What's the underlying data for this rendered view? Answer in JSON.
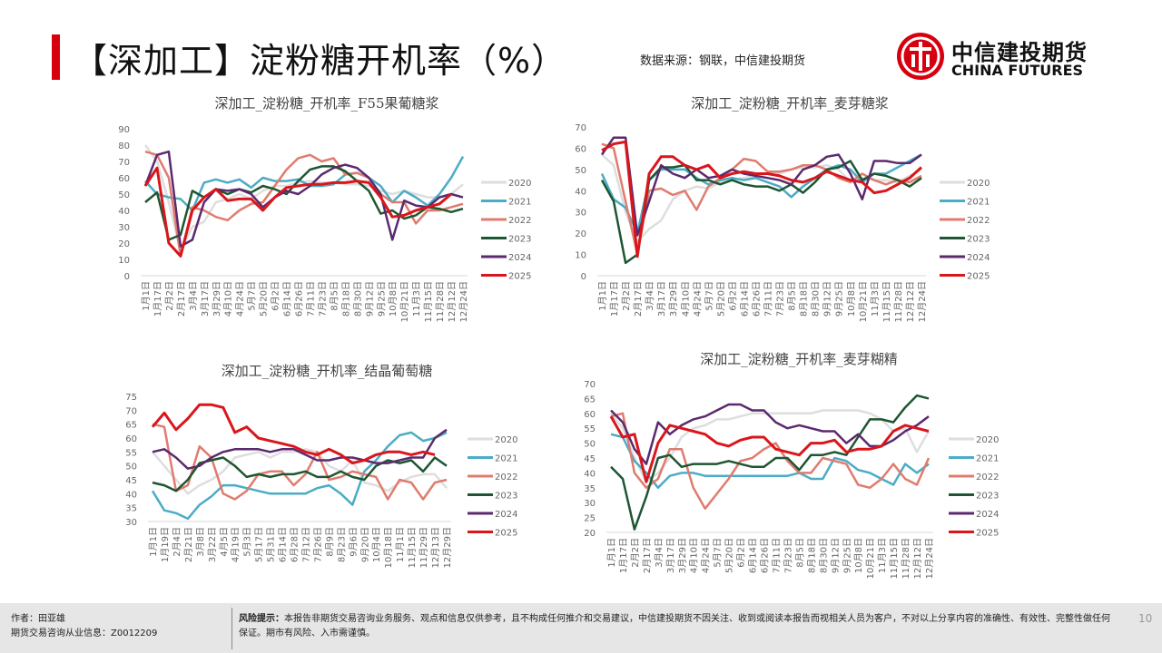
{
  "header": {
    "title": "【深加工】淀粉糖开机率（%）",
    "source": "数据来源：钢联，中信建投期货"
  },
  "logo": {
    "cn": "中信建投期货",
    "en": "CHINA FUTURES"
  },
  "footer": {
    "author": "作者：田亚雄",
    "license": "期货交易咨询从业信息：Z0012209",
    "risk_label": "风险提示：",
    "risk_text": "本报告非期货交易咨询业务服务、观点和信息仅供参考，且不构成任何推介和交易建议，中信建投期货不因关注、收到或阅读本报告而视相关人员为客户，不对以上分享内容的准确性、有效性、完整性做任何保证。期市有风险、入市需谨慎。",
    "page": "10"
  },
  "colors": {
    "2020": "#dedede",
    "2021": "#4bacc6",
    "2022": "#e07b6f",
    "2023": "#1e5631",
    "2024": "#5b2a6e",
    "2025": "#d9161b"
  },
  "chart_data": [
    {
      "type": "line",
      "title": "深加工_淀粉糖_开机率_F55果葡糖浆",
      "ylim": [
        0,
        90
      ],
      "yticks": [
        0,
        10,
        20,
        30,
        40,
        50,
        60,
        70,
        80,
        90
      ],
      "categories": [
        "1月1日",
        "1月17日",
        "2月2日",
        "2月17日",
        "3月4日",
        "3月17日",
        "3月29日",
        "4月10日",
        "4月24日",
        "5月7日",
        "5月20日",
        "6月2日",
        "6月14日",
        "6月26日",
        "7月11日",
        "7月23日",
        "8月5日",
        "8月18日",
        "8月30日",
        "9月12日",
        "9月25日",
        "10月8日",
        "10月21日",
        "11月3日",
        "11月15日",
        "11月28日",
        "12月12日",
        "12月24日"
      ],
      "series": [
        {
          "name": "2020",
          "values": [
            80,
            70,
            45,
            15,
            30,
            33,
            45,
            47,
            50,
            47,
            52,
            55,
            55,
            57,
            58,
            57,
            57,
            56,
            56,
            55,
            52,
            50,
            52,
            50,
            48,
            48,
            50,
            56
          ]
        },
        {
          "name": "2021",
          "values": [
            58,
            50,
            48,
            47,
            40,
            57,
            59,
            57,
            59,
            54,
            60,
            58,
            58,
            59,
            55,
            55,
            56,
            62,
            63,
            60,
            55,
            45,
            52,
            48,
            43,
            50,
            60,
            73
          ]
        },
        {
          "name": "2022",
          "values": [
            76,
            74,
            60,
            12,
            42,
            40,
            36,
            34,
            40,
            44,
            45,
            55,
            65,
            72,
            74,
            70,
            72,
            62,
            63,
            60,
            50,
            45,
            45,
            32,
            40,
            40,
            42,
            44
          ]
        },
        {
          "name": "2023",
          "values": [
            45,
            51,
            22,
            25,
            52,
            48,
            53,
            50,
            53,
            51,
            55,
            53,
            50,
            58,
            65,
            67,
            67,
            64,
            58,
            52,
            38,
            40,
            35,
            37,
            42,
            41,
            39,
            41
          ]
        },
        {
          "name": "2024",
          "values": [
            55,
            74,
            76,
            18,
            22,
            45,
            53,
            52,
            53,
            50,
            42,
            48,
            52,
            50,
            55,
            62,
            66,
            68,
            66,
            60,
            50,
            22,
            46,
            43,
            42,
            48,
            50,
            48
          ]
        },
        {
          "name": "2025",
          "values": [
            55,
            66,
            20,
            12,
            40,
            48,
            53,
            46,
            47,
            47,
            40,
            48,
            54,
            55,
            56,
            56,
            57,
            57,
            58,
            57,
            48,
            36,
            37,
            40,
            42,
            44,
            50,
            null
          ]
        }
      ]
    },
    {
      "type": "line",
      "title": "深加工_淀粉糖_开机率_麦芽糖浆",
      "ylim": [
        0,
        70
      ],
      "yticks": [
        0,
        10,
        20,
        30,
        40,
        50,
        60,
        70
      ],
      "categories": [
        "1月1日",
        "1月17日",
        "2月2日",
        "2月17日",
        "3月4日",
        "3月17日",
        "3月29日",
        "4月10日",
        "4月24日",
        "5月7日",
        "5月20日",
        "6月2日",
        "6月14日",
        "6月26日",
        "7月11日",
        "7月23日",
        "8月5日",
        "8月18日",
        "8月30日",
        "9月12日",
        "9月25日",
        "10月8日",
        "10月21日",
        "11月3日",
        "11月15日",
        "11月28日",
        "12月12日",
        "12月24日"
      ],
      "series": [
        {
          "name": "2020",
          "values": [
            57,
            52,
            30,
            16,
            22,
            26,
            36,
            40,
            42,
            41,
            44,
            45,
            46,
            47,
            48,
            48,
            50,
            51,
            51,
            52,
            50,
            44,
            46,
            45,
            45,
            44,
            47,
            50
          ]
        },
        {
          "name": "2021",
          "values": [
            48,
            36,
            32,
            20,
            45,
            50,
            50,
            50,
            46,
            43,
            45,
            46,
            45,
            46,
            44,
            42,
            37,
            42,
            46,
            50,
            52,
            50,
            44,
            48,
            48,
            51,
            54,
            57
          ]
        },
        {
          "name": "2022",
          "values": [
            62,
            60,
            35,
            10,
            40,
            41,
            38,
            40,
            31,
            42,
            46,
            50,
            55,
            54,
            49,
            49,
            50,
            52,
            52,
            50,
            46,
            44,
            48,
            45,
            43,
            45,
            44,
            47
          ]
        },
        {
          "name": "2023",
          "values": [
            45,
            35,
            6,
            10,
            45,
            51,
            51,
            52,
            45,
            45,
            43,
            45,
            43,
            42,
            42,
            40,
            43,
            39,
            44,
            50,
            51,
            54,
            45,
            48,
            47,
            45,
            42,
            46
          ]
        },
        {
          "name": "2024",
          "values": [
            57,
            65,
            65,
            19,
            35,
            52,
            48,
            46,
            50,
            46,
            47,
            50,
            48,
            47,
            46,
            45,
            43,
            50,
            52,
            56,
            57,
            48,
            36,
            54,
            54,
            53,
            53,
            57
          ]
        },
        {
          "name": "2025",
          "values": [
            59,
            62,
            63,
            9,
            48,
            56,
            56,
            52,
            50,
            52,
            46,
            48,
            49,
            48,
            48,
            47,
            45,
            44,
            46,
            49,
            47,
            45,
            44,
            39,
            40,
            43,
            46,
            51
          ]
        }
      ]
    },
    {
      "type": "line",
      "title": "深加工_淀粉糖_开机率_结晶葡萄糖",
      "ylim": [
        30,
        75
      ],
      "yticks": [
        30,
        35,
        40,
        45,
        50,
        55,
        60,
        65,
        70,
        75
      ],
      "categories": [
        "1月1日",
        "1月19日",
        "2月4日",
        "2月21日",
        "3月8日",
        "3月22日",
        "4月5日",
        "4月19日",
        "5月3日",
        "5月17日",
        "5月31日",
        "6月14日",
        "6月28日",
        "7月12日",
        "7月26日",
        "8月9日",
        "8月23日",
        "9月6日",
        "9月20日",
        "10月4日",
        "10月18日",
        "11月1日",
        "11月15日",
        "11月29日",
        "12月13日",
        "12月29日"
      ],
      "series": [
        {
          "name": "2020",
          "values": [
            55,
            50,
            45,
            40,
            43,
            45,
            48,
            53,
            54,
            55,
            53,
            55,
            55,
            56,
            55,
            50,
            48,
            52,
            44,
            43,
            41,
            44,
            46,
            47,
            47,
            42
          ]
        },
        {
          "name": "2021",
          "values": [
            41,
            34,
            33,
            31,
            36,
            39,
            43,
            43,
            42,
            41,
            40,
            40,
            40,
            40,
            42,
            43,
            40,
            36,
            48,
            52,
            57,
            61,
            62,
            59,
            60,
            62
          ]
        },
        {
          "name": "2022",
          "values": [
            65,
            64,
            41,
            43,
            57,
            53,
            40,
            38,
            41,
            47,
            48,
            48,
            43,
            47,
            55,
            45,
            46,
            48,
            47,
            46,
            38,
            45,
            44,
            38,
            44,
            45
          ]
        },
        {
          "name": "2023",
          "values": [
            44,
            43,
            41,
            45,
            51,
            52,
            53,
            50,
            46,
            47,
            46,
            47,
            47,
            48,
            46,
            46,
            48,
            46,
            45,
            50,
            52,
            51,
            52,
            48,
            53,
            50
          ]
        },
        {
          "name": "2024",
          "values": [
            55,
            56,
            53,
            49,
            50,
            53,
            55,
            56,
            56,
            56,
            55,
            56,
            56,
            54,
            52,
            52,
            53,
            53,
            52,
            51,
            51,
            52,
            53,
            53,
            60,
            63
          ]
        },
        {
          "name": "2025",
          "values": [
            64,
            69,
            63,
            67,
            72,
            72,
            71,
            62,
            64,
            60,
            59,
            58,
            57,
            55,
            54,
            56,
            54,
            51,
            52,
            54,
            55,
            55,
            54,
            55,
            54,
            null
          ]
        }
      ]
    },
    {
      "type": "line",
      "title": "深加工_淀粉糖_开机率_麦芽糊精",
      "ylim": [
        20,
        70
      ],
      "yticks": [
        20,
        25,
        30,
        35,
        40,
        45,
        50,
        55,
        60,
        65,
        70
      ],
      "categories": [
        "1月1日",
        "1月17日",
        "2月2日",
        "2月17日",
        "3月4日",
        "3月17日",
        "3月29日",
        "4月10日",
        "4月24日",
        "5月7日",
        "5月20日",
        "6月2日",
        "6月14日",
        "6月26日",
        "7月11日",
        "7月23日",
        "8月5日",
        "8月18日",
        "8月30日",
        "9月12日",
        "9月25日",
        "10月8日",
        "10月21日",
        "11月3日",
        "11月15日",
        "11月28日",
        "12月12日",
        "12月24日"
      ],
      "series": [
        {
          "name": "2020",
          "values": [
            60,
            55,
            45,
            37,
            40,
            45,
            52,
            55,
            56,
            58,
            58,
            59,
            60,
            60,
            60,
            60,
            60,
            60,
            61,
            61,
            61,
            61,
            60,
            58,
            54,
            55,
            47,
            54
          ]
        },
        {
          "name": "2021",
          "values": [
            53,
            52,
            44,
            40,
            35,
            39,
            40,
            40,
            39,
            39,
            39,
            39,
            39,
            39,
            39,
            39,
            40,
            38,
            38,
            45,
            44,
            41,
            40,
            38,
            36,
            43,
            40,
            43
          ]
        },
        {
          "name": "2022",
          "values": [
            59,
            60,
            40,
            35,
            38,
            48,
            48,
            35,
            28,
            33,
            38,
            44,
            45,
            48,
            50,
            44,
            40,
            40,
            45,
            44,
            43,
            36,
            35,
            38,
            43,
            38,
            36,
            45
          ]
        },
        {
          "name": "2023",
          "values": [
            42,
            38,
            21,
            32,
            45,
            46,
            42,
            43,
            43,
            43,
            44,
            43,
            42,
            42,
            45,
            45,
            41,
            46,
            46,
            47,
            46,
            52,
            58,
            58,
            57,
            62,
            66,
            65
          ]
        },
        {
          "name": "2024",
          "values": [
            61,
            57,
            48,
            43,
            57,
            53,
            56,
            58,
            59,
            61,
            63,
            63,
            61,
            61,
            57,
            55,
            56,
            55,
            54,
            54,
            50,
            53,
            49,
            49,
            51,
            54,
            56,
            59
          ]
        },
        {
          "name": "2025",
          "values": [
            59,
            52,
            53,
            37,
            50,
            56,
            55,
            54,
            53,
            50,
            49,
            51,
            52,
            52,
            48,
            47,
            46,
            50,
            50,
            51,
            47,
            48,
            48,
            49,
            54,
            56,
            55,
            54
          ]
        }
      ]
    }
  ]
}
